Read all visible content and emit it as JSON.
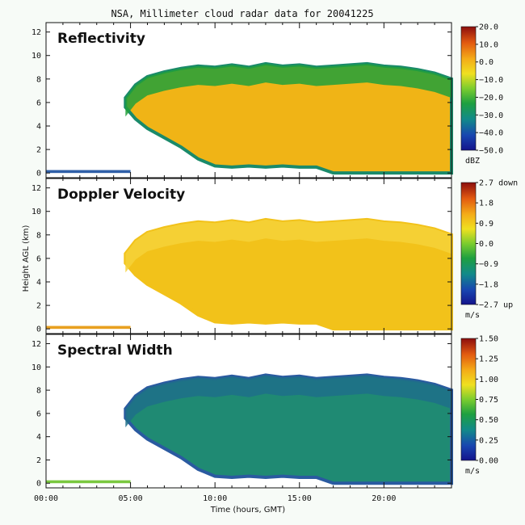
{
  "title": "NSA, Millimeter cloud radar data for 20041225",
  "xlabel": "Time (hours, GMT)",
  "ylabel": "Height AGL (km)",
  "chart_data": {
    "type": "heatmap",
    "xlim": [
      0,
      24
    ],
    "ylim": [
      -0.4,
      12.8
    ],
    "x_ticks": [
      "00:00",
      "05:00",
      "10:00",
      "15:00",
      "20:00"
    ],
    "x_tick_values": [
      0,
      5,
      10,
      15,
      20
    ],
    "y_ticks": [
      "0",
      "2",
      "4",
      "6",
      "8",
      "10",
      "12"
    ],
    "y_tick_values": [
      0,
      2,
      4,
      6,
      8,
      10,
      12
    ],
    "cloud_extent": {
      "time_hours": [
        4.7,
        5.3,
        6.0,
        7.0,
        8.0,
        9.0,
        10.0,
        11.0,
        12.0,
        13.0,
        14.0,
        15.0,
        16.0,
        17.0,
        18.0,
        19.0,
        20.0,
        21.0,
        22.0,
        23.0,
        24.0
      ],
      "cloud_top_km": [
        6.4,
        7.5,
        8.2,
        8.6,
        8.9,
        9.1,
        9.0,
        9.2,
        9.0,
        9.3,
        9.1,
        9.2,
        9.0,
        9.1,
        9.2,
        9.3,
        9.1,
        9.0,
        8.8,
        8.5,
        8.0
      ],
      "cloud_base_km": [
        5.6,
        4.6,
        3.8,
        3.0,
        2.2,
        1.2,
        0.6,
        0.5,
        0.6,
        0.5,
        0.6,
        0.5,
        0.5,
        0.0,
        0.0,
        0.0,
        0.0,
        0.0,
        0.0,
        0.0,
        0.0
      ]
    },
    "panels": [
      {
        "label": "Reflectivity",
        "colorbar_ticks": [
          "20.0",
          "10.0",
          "0.0",
          "−10.0",
          "−20.0",
          "−30.0",
          "−40.0",
          "−50.0"
        ],
        "colorbar_range": [
          -50,
          20
        ],
        "units": "dBZ",
        "interior_color": "#f0b416",
        "edge_color": "#1a8a6a",
        "top_color": "#22a03a",
        "surface_echo_color": "#2f5fa8"
      },
      {
        "label": "Doppler Velocity",
        "colorbar_ticks": [
          "2.7 down",
          "1.8",
          "0.9",
          "0.0",
          "−0.9",
          "−1.8",
          "−2.7 up"
        ],
        "colorbar_range": [
          -2.7,
          2.7
        ],
        "units": "m/s",
        "interior_color": "#f2c21a",
        "edge_color": "#f2c21a",
        "top_color": "#f6d23a",
        "surface_echo_color": "#e8a020"
      },
      {
        "label": "Spectral Width",
        "colorbar_ticks": [
          "1.50",
          "1.25",
          "1.00",
          "0.75",
          "0.50",
          "0.25",
          "0.00"
        ],
        "colorbar_range": [
          0,
          1.5
        ],
        "units": "m/s",
        "interior_color": "#1f8a73",
        "edge_color": "#2a5aa0",
        "top_color": "#1e6f8a",
        "surface_echo_color": "#7ac840"
      }
    ],
    "grid": false,
    "legend": "colorbar-right"
  }
}
